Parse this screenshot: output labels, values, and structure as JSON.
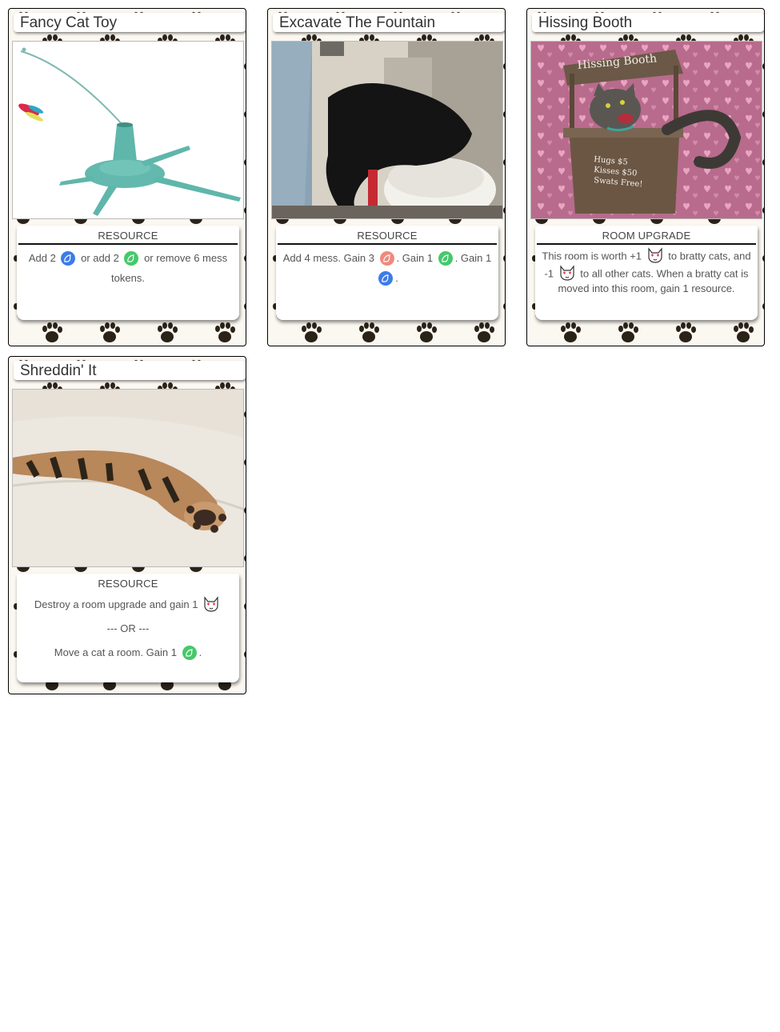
{
  "colors": {
    "blue_token": "#3d7ce8",
    "green_token": "#45c96a",
    "red_token": "#f08a7c",
    "paw_print": "#2b2218"
  },
  "cards": [
    {
      "title": "Fancy Cat Toy",
      "type": "RESOURCE",
      "effect": {
        "p1": "Add 2",
        "p2": "or add 2",
        "p3": "or remove 6 mess",
        "p4": "tokens."
      }
    },
    {
      "title": "Excavate The Fountain",
      "type": "RESOURCE",
      "effect": {
        "p1": "Add 4 mess. Gain 3",
        "p2": ". Gain 1",
        "p3": ". Gain 1",
        "p4": "."
      }
    },
    {
      "title": "Hissing Booth",
      "type": "ROOM UPGRADE",
      "sign": {
        "title": "Hissing Booth",
        "line1": "Hugs $5",
        "line2": "Kisses $50",
        "line3": "Swats Free!"
      },
      "effect": {
        "p1": "This room is worth +1",
        "p2": "to bratty cats, and -1",
        "p3": "to all other cats. When a bratty cat is moved into this room, gain 1 resource."
      }
    },
    {
      "title": "Shreddin' It",
      "type": "RESOURCE",
      "effect": {
        "p1": "Destroy a room upgrade and gain 1",
        "p2": "--- OR ---",
        "p3": "Move a cat a room. Gain 1",
        "p4": "."
      }
    }
  ]
}
